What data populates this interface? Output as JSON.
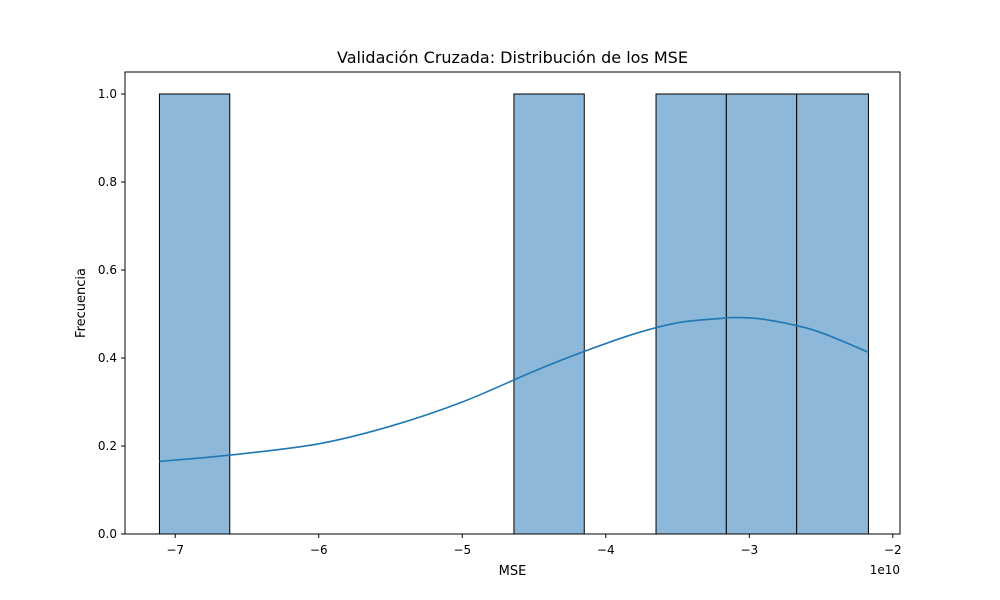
{
  "chart_data": {
    "type": "bar",
    "subtype": "histogram_with_kde",
    "title": "Validación Cruzada: Distribución de los MSE",
    "xlabel": "MSE",
    "ylabel": "Frecuencia",
    "x_offset_text": "1e10",
    "xlim": [
      -7.35,
      -1.95
    ],
    "ylim": [
      0,
      1.05
    ],
    "x_ticks": [
      -7,
      -6,
      -5,
      -4,
      -3,
      -2
    ],
    "x_tick_labels": [
      "−7",
      "−6",
      "−5",
      "−4",
      "−3",
      "−2"
    ],
    "y_ticks": [
      0.0,
      0.2,
      0.4,
      0.6,
      0.8,
      1.0
    ],
    "y_tick_labels": [
      "0.0",
      "0.2",
      "0.4",
      "0.6",
      "0.8",
      "1.0"
    ],
    "grid": false,
    "bins": [
      {
        "x0": -7.11,
        "x1": -6.62,
        "count": 1
      },
      {
        "x0": -4.64,
        "x1": -4.15,
        "count": 1
      },
      {
        "x0": -3.65,
        "x1": -3.16,
        "count": 1
      },
      {
        "x0": -3.16,
        "x1": -2.67,
        "count": 1
      },
      {
        "x0": -2.67,
        "x1": -2.17,
        "count": 1
      }
    ],
    "kde": {
      "x": [
        -7.11,
        -6.6,
        -6.0,
        -5.5,
        -5.0,
        -4.5,
        -4.15,
        -3.8,
        -3.5,
        -3.2,
        -3.1,
        -2.9,
        -2.6,
        -2.4,
        -2.17
      ],
      "y": [
        0.165,
        0.18,
        0.205,
        0.245,
        0.3,
        0.37,
        0.415,
        0.455,
        0.48,
        0.49,
        0.492,
        0.488,
        0.468,
        0.445,
        0.413
      ]
    },
    "colors": {
      "bar_fill": "#8db8da",
      "bar_edge": "#000000",
      "kde_line": "#1f77b4"
    }
  }
}
